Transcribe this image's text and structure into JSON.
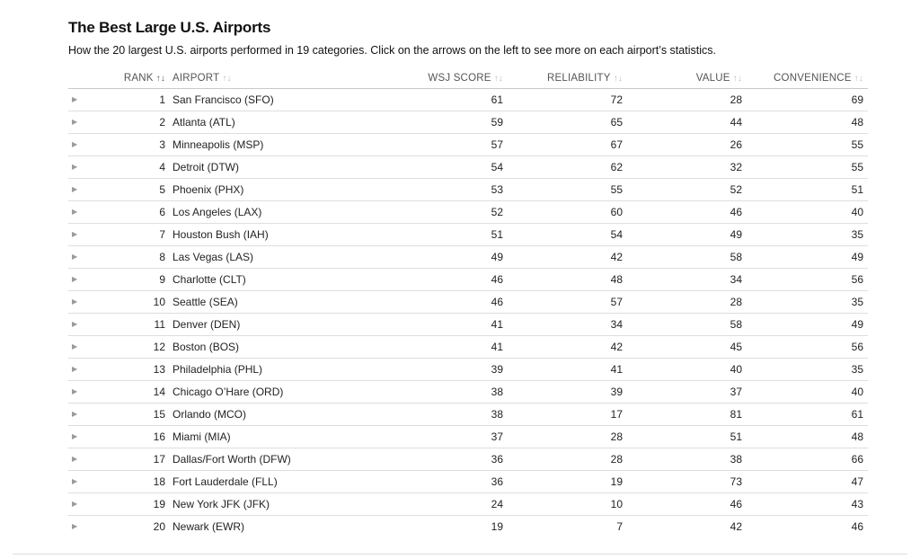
{
  "header": {
    "title": "The Best Large U.S. Airports",
    "subtitle": "How the 20 largest U.S. airports performed in 19 categories. Click on the arrows on the left to see more on each airport’s statistics."
  },
  "columns": {
    "rank": "RANK",
    "airport": "AIRPORT",
    "wsj": "WSJ SCORE",
    "reliability": "RELIABILITY",
    "value": "VALUE",
    "convenience": "CONVENIENCE",
    "sort_icon": "↑↓"
  },
  "rows": [
    {
      "rank": "1",
      "airport": "San Francisco (SFO)",
      "wsj": "61",
      "reliability": "72",
      "value": "28",
      "convenience": "69"
    },
    {
      "rank": "2",
      "airport": "Atlanta (ATL)",
      "wsj": "59",
      "reliability": "65",
      "value": "44",
      "convenience": "48"
    },
    {
      "rank": "3",
      "airport": "Minneapolis (MSP)",
      "wsj": "57",
      "reliability": "67",
      "value": "26",
      "convenience": "55"
    },
    {
      "rank": "4",
      "airport": "Detroit (DTW)",
      "wsj": "54",
      "reliability": "62",
      "value": "32",
      "convenience": "55"
    },
    {
      "rank": "5",
      "airport": "Phoenix (PHX)",
      "wsj": "53",
      "reliability": "55",
      "value": "52",
      "convenience": "51"
    },
    {
      "rank": "6",
      "airport": "Los Angeles (LAX)",
      "wsj": "52",
      "reliability": "60",
      "value": "46",
      "convenience": "40"
    },
    {
      "rank": "7",
      "airport": "Houston Bush (IAH)",
      "wsj": "51",
      "reliability": "54",
      "value": "49",
      "convenience": "35"
    },
    {
      "rank": "8",
      "airport": "Las Vegas (LAS)",
      "wsj": "49",
      "reliability": "42",
      "value": "58",
      "convenience": "49"
    },
    {
      "rank": "9",
      "airport": "Charlotte (CLT)",
      "wsj": "46",
      "reliability": "48",
      "value": "34",
      "convenience": "56"
    },
    {
      "rank": "10",
      "airport": "Seattle (SEA)",
      "wsj": "46",
      "reliability": "57",
      "value": "28",
      "convenience": "35"
    },
    {
      "rank": "11",
      "airport": "Denver (DEN)",
      "wsj": "41",
      "reliability": "34",
      "value": "58",
      "convenience": "49"
    },
    {
      "rank": "12",
      "airport": "Boston (BOS)",
      "wsj": "41",
      "reliability": "42",
      "value": "45",
      "convenience": "56"
    },
    {
      "rank": "13",
      "airport": "Philadelphia (PHL)",
      "wsj": "39",
      "reliability": "41",
      "value": "40",
      "convenience": "35"
    },
    {
      "rank": "14",
      "airport": "Chicago O’Hare (ORD)",
      "wsj": "38",
      "reliability": "39",
      "value": "37",
      "convenience": "40"
    },
    {
      "rank": "15",
      "airport": "Orlando (MCO)",
      "wsj": "38",
      "reliability": "17",
      "value": "81",
      "convenience": "61"
    },
    {
      "rank": "16",
      "airport": "Miami (MIA)",
      "wsj": "37",
      "reliability": "28",
      "value": "51",
      "convenience": "48"
    },
    {
      "rank": "17",
      "airport": "Dallas/Fort Worth (DFW)",
      "wsj": "36",
      "reliability": "28",
      "value": "38",
      "convenience": "66"
    },
    {
      "rank": "18",
      "airport": "Fort Lauderdale (FLL)",
      "wsj": "36",
      "reliability": "19",
      "value": "73",
      "convenience": "47"
    },
    {
      "rank": "19",
      "airport": "New York JFK (JFK)",
      "wsj": "24",
      "reliability": "10",
      "value": "46",
      "convenience": "43"
    },
    {
      "rank": "20",
      "airport": "Newark (EWR)",
      "wsj": "19",
      "reliability": "7",
      "value": "42",
      "convenience": "46"
    }
  ],
  "expand_icon": "▶"
}
